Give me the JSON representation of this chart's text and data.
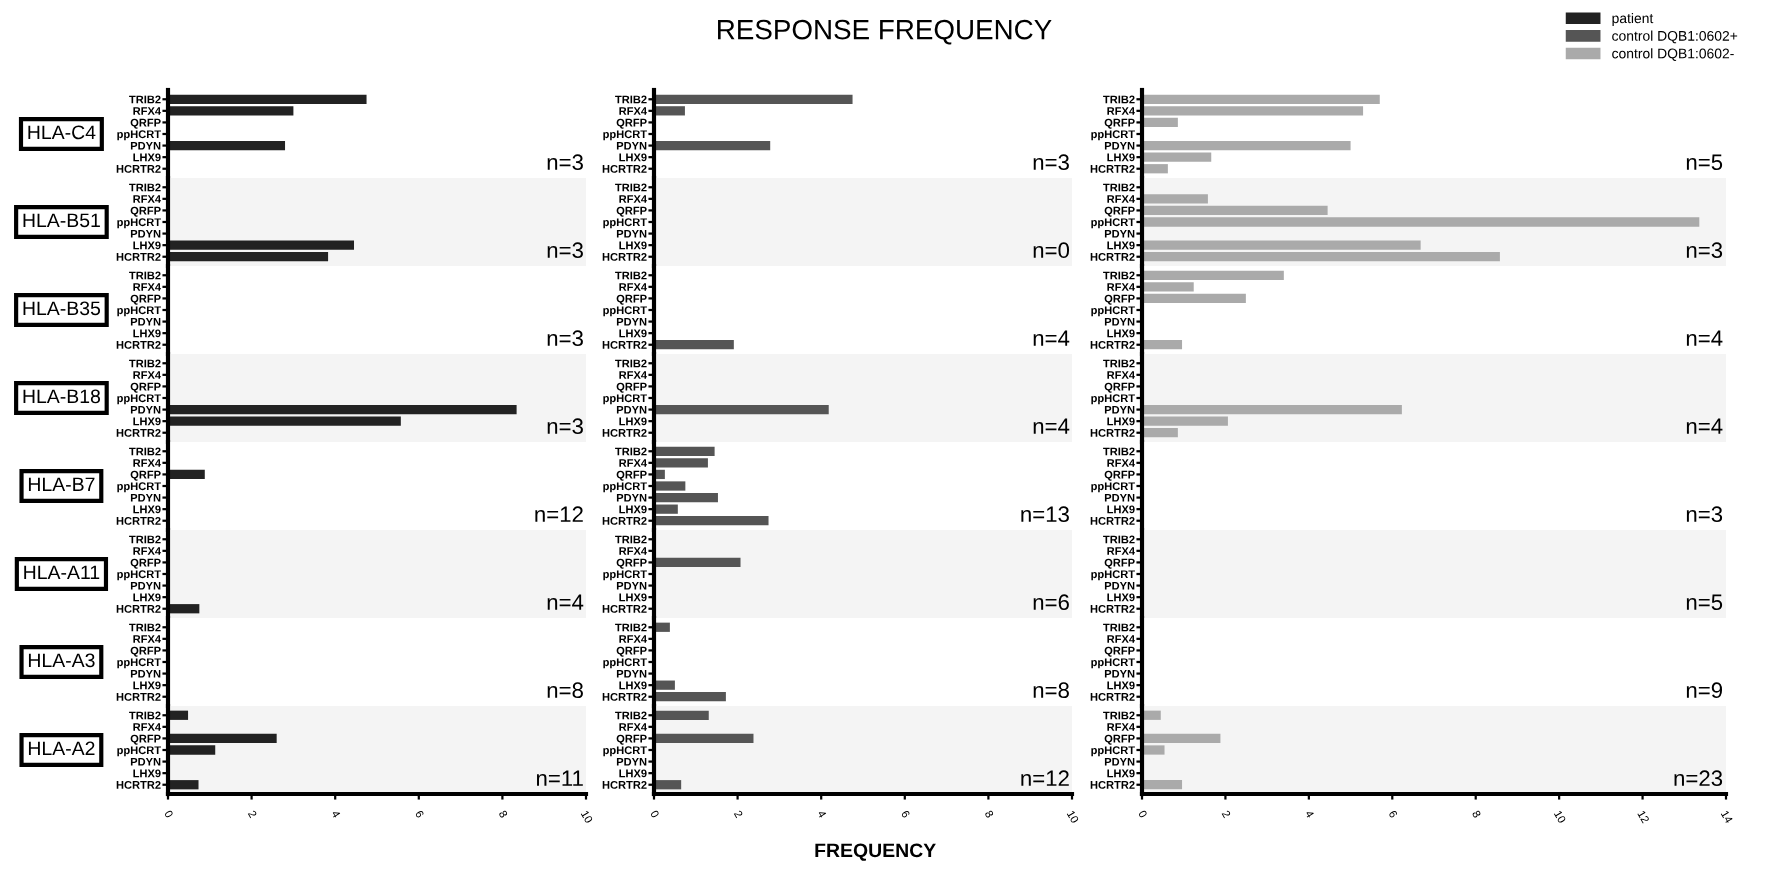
{
  "chart_data": [
    {
      "type": "bar",
      "orientation": "horizontal",
      "ylabel": "HLA-C4",
      "legend": "top right",
      "categories": [
        "TRIB2",
        "RFX4",
        "QRFP",
        "ppHCRT",
        "PDYN",
        "LHX9",
        "HCRTR2"
      ],
      "series": [
        {
          "name": "patient",
          "color": "#222222",
          "values": [
            4.75,
            3,
            0,
            0,
            2.8,
            0,
            0
          ]
        }
      ],
      "xlim": [
        0,
        10
      ],
      "xticks": [
        0,
        2,
        4,
        6,
        8,
        10
      ],
      "tick_labels": "y",
      "annotations": [
        "n=3"
      ]
    },
    {
      "type": "bar",
      "orientation": "horizontal",
      "title": "RESPONSE FREQUENCY",
      "categories": [
        "TRIB2",
        "RFX4",
        "QRFP",
        "ppHCRT",
        "PDYN",
        "LHX9",
        "HCRTR2"
      ],
      "series": [
        {
          "name": "control DQB1:0602+",
          "color": "#555555",
          "values": [
            4.75,
            0.74,
            0,
            0,
            2.78,
            0,
            0
          ]
        }
      ],
      "xlim": [
        0,
        10
      ],
      "xticks": [
        0,
        2,
        4,
        6,
        8,
        10
      ],
      "tick_labels": "y",
      "annotations": [
        "n=3"
      ]
    },
    {
      "type": "bar",
      "orientation": "horizontal",
      "categories": [
        "TRIB2",
        "RFX4",
        "QRFP",
        "ppHCRT",
        "PDYN",
        "LHX9",
        "HCRTR2"
      ],
      "series": [
        {
          "name": "control DQB1:0602-",
          "color": "#aaaaaa",
          "values": [
            5.7,
            5.3,
            0.86,
            0,
            5.0,
            1.66,
            0.62
          ]
        }
      ],
      "xlim": [
        0,
        14
      ],
      "xticks": [
        0,
        2,
        4,
        6,
        8,
        10,
        12,
        14
      ],
      "tick_labels": "y",
      "annotations": [
        "n=5"
      ]
    },
    {
      "type": "bar",
      "orientation": "horizontal",
      "ylabel": "HLA-B51",
      "categories": [
        "TRIB2",
        "RFX4",
        "QRFP",
        "ppHCRT",
        "PDYN",
        "LHX9",
        "HCRTR2"
      ],
      "series": [
        {
          "color": "#222222",
          "values": [
            0,
            0,
            0,
            0,
            0,
            4.45,
            3.83
          ]
        }
      ],
      "xlim": [
        0,
        10
      ],
      "xticks": [
        0,
        2,
        4,
        6,
        8,
        10
      ],
      "tick_labels": "y",
      "annotations": [
        "n=3"
      ]
    },
    {
      "type": "bar",
      "orientation": "horizontal",
      "categories": [
        "TRIB2",
        "RFX4",
        "QRFP",
        "ppHCRT",
        "PDYN",
        "LHX9",
        "HCRTR2"
      ],
      "series": [
        {
          "color": "#555555",
          "values": [
            0,
            0,
            0,
            0,
            0,
            0,
            0
          ]
        }
      ],
      "xlim": [
        0,
        10
      ],
      "xticks": [
        0,
        2,
        4,
        6,
        8,
        10
      ],
      "tick_labels": "y",
      "annotations": [
        "n=0"
      ]
    },
    {
      "type": "bar",
      "orientation": "horizontal",
      "categories": [
        "TRIB2",
        "RFX4",
        "QRFP",
        "ppHCRT",
        "PDYN",
        "LHX9",
        "HCRTR2"
      ],
      "series": [
        {
          "color": "#aaaaaa",
          "values": [
            0,
            1.58,
            4.45,
            13.36,
            0,
            6.68,
            8.58
          ]
        }
      ],
      "xlim": [
        0,
        14
      ],
      "xticks": [
        0,
        2,
        4,
        6,
        8,
        10,
        12,
        14
      ],
      "tick_labels": "y",
      "annotations": [
        "n=3"
      ]
    },
    {
      "type": "bar",
      "orientation": "horizontal",
      "ylabel": "HLA-B35",
      "categories": [
        "TRIB2",
        "RFX4",
        "QRFP",
        "ppHCRT",
        "PDYN",
        "LHX9",
        "HCRTR2"
      ],
      "series": [
        {
          "color": "#222222",
          "values": [
            0,
            0,
            0,
            0,
            0,
            0,
            0
          ]
        }
      ],
      "xlim": [
        0,
        10
      ],
      "xticks": [
        0,
        2,
        4,
        6,
        8,
        10
      ],
      "tick_labels": "y",
      "annotations": [
        "n=3"
      ]
    },
    {
      "type": "bar",
      "orientation": "horizontal",
      "categories": [
        "TRIB2",
        "RFX4",
        "QRFP",
        "ppHCRT",
        "PDYN",
        "LHX9",
        "HCRTR2"
      ],
      "series": [
        {
          "color": "#555555",
          "values": [
            0,
            0,
            0,
            0,
            0,
            0,
            1.91
          ]
        }
      ],
      "xlim": [
        0,
        10
      ],
      "xticks": [
        0,
        2,
        4,
        6,
        8,
        10
      ],
      "tick_labels": "y",
      "annotations": [
        "n=4"
      ]
    },
    {
      "type": "bar",
      "orientation": "horizontal",
      "categories": [
        "TRIB2",
        "RFX4",
        "QRFP",
        "ppHCRT",
        "PDYN",
        "LHX9",
        "HCRTR2"
      ],
      "series": [
        {
          "color": "#aaaaaa",
          "values": [
            3.4,
            1.24,
            2.49,
            0,
            0,
            0,
            0.96
          ]
        }
      ],
      "xlim": [
        0,
        14
      ],
      "xticks": [
        0,
        2,
        4,
        6,
        8,
        10,
        12,
        14
      ],
      "tick_labels": "y",
      "annotations": [
        "n=4"
      ]
    },
    {
      "type": "bar",
      "orientation": "horizontal",
      "ylabel": "HLA-B18",
      "categories": [
        "TRIB2",
        "RFX4",
        "QRFP",
        "ppHCRT",
        "PDYN",
        "LHX9",
        "HCRTR2"
      ],
      "series": [
        {
          "color": "#222222",
          "values": [
            0,
            0,
            0,
            0,
            8.34,
            5.57,
            0
          ]
        }
      ],
      "xlim": [
        0,
        10
      ],
      "xticks": [
        0,
        2,
        4,
        6,
        8,
        10
      ],
      "tick_labels": "y",
      "annotations": [
        "n=3"
      ]
    },
    {
      "type": "bar",
      "orientation": "horizontal",
      "categories": [
        "TRIB2",
        "RFX4",
        "QRFP",
        "ppHCRT",
        "PDYN",
        "LHX9",
        "HCRTR2"
      ],
      "series": [
        {
          "color": "#555555",
          "values": [
            0,
            0,
            0,
            0,
            4.18,
            0,
            0
          ]
        }
      ],
      "xlim": [
        0,
        10
      ],
      "xticks": [
        0,
        2,
        4,
        6,
        8,
        10
      ],
      "tick_labels": "y",
      "annotations": [
        "n=4"
      ]
    },
    {
      "type": "bar",
      "orientation": "horizontal",
      "categories": [
        "TRIB2",
        "RFX4",
        "QRFP",
        "ppHCRT",
        "PDYN",
        "LHX9",
        "HCRTR2"
      ],
      "series": [
        {
          "color": "#aaaaaa",
          "values": [
            0,
            0,
            0,
            0,
            6.23,
            2.06,
            0.86
          ]
        }
      ],
      "xlim": [
        0,
        14
      ],
      "xticks": [
        0,
        2,
        4,
        6,
        8,
        10,
        12,
        14
      ],
      "tick_labels": "y",
      "annotations": [
        "n=4"
      ]
    },
    {
      "type": "bar",
      "orientation": "horizontal",
      "ylabel": "HLA-B7",
      "categories": [
        "TRIB2",
        "RFX4",
        "QRFP",
        "ppHCRT",
        "PDYN",
        "LHX9",
        "HCRTR2"
      ],
      "series": [
        {
          "color": "#222222",
          "values": [
            0,
            0,
            0.88,
            0,
            0,
            0,
            0
          ]
        }
      ],
      "xlim": [
        0,
        10
      ],
      "xticks": [
        0,
        2,
        4,
        6,
        8,
        10
      ],
      "tick_labels": "y",
      "annotations": [
        "n=12"
      ]
    },
    {
      "type": "bar",
      "orientation": "horizontal",
      "categories": [
        "TRIB2",
        "RFX4",
        "QRFP",
        "ppHCRT",
        "PDYN",
        "LHX9",
        "HCRTR2"
      ],
      "series": [
        {
          "color": "#555555",
          "values": [
            1.45,
            1.29,
            0.26,
            0.75,
            1.53,
            0.57,
            2.74
          ]
        }
      ],
      "xlim": [
        0,
        10
      ],
      "xticks": [
        0,
        2,
        4,
        6,
        8,
        10
      ],
      "tick_labels": "y",
      "annotations": [
        "n=13"
      ]
    },
    {
      "type": "bar",
      "orientation": "horizontal",
      "categories": [
        "TRIB2",
        "RFX4",
        "QRFP",
        "ppHCRT",
        "PDYN",
        "LHX9",
        "HCRTR2"
      ],
      "series": [
        {
          "color": "#aaaaaa",
          "values": [
            0,
            0,
            0,
            0,
            0,
            0,
            0
          ]
        }
      ],
      "xlim": [
        0,
        14
      ],
      "xticks": [
        0,
        2,
        4,
        6,
        8,
        10,
        12,
        14
      ],
      "tick_labels": "y",
      "annotations": [
        "n=3"
      ]
    },
    {
      "type": "bar",
      "orientation": "horizontal",
      "ylabel": "HLA-A11",
      "categories": [
        "TRIB2",
        "RFX4",
        "QRFP",
        "ppHCRT",
        "PDYN",
        "LHX9",
        "HCRTR2"
      ],
      "series": [
        {
          "color": "#222222",
          "values": [
            0,
            0,
            0,
            0,
            0,
            0,
            0.75
          ]
        }
      ],
      "xlim": [
        0,
        10
      ],
      "xticks": [
        0,
        2,
        4,
        6,
        8,
        10
      ],
      "tick_labels": "y",
      "annotations": [
        "n=4"
      ]
    },
    {
      "type": "bar",
      "orientation": "horizontal",
      "categories": [
        "TRIB2",
        "RFX4",
        "QRFP",
        "ppHCRT",
        "PDYN",
        "LHX9",
        "HCRTR2"
      ],
      "series": [
        {
          "color": "#555555",
          "values": [
            0,
            0,
            2.07,
            0,
            0,
            0,
            0
          ]
        }
      ],
      "xlim": [
        0,
        10
      ],
      "xticks": [
        0,
        2,
        4,
        6,
        8,
        10
      ],
      "tick_labels": "y",
      "annotations": [
        "n=6"
      ]
    },
    {
      "type": "bar",
      "orientation": "horizontal",
      "categories": [
        "TRIB2",
        "RFX4",
        "QRFP",
        "ppHCRT",
        "PDYN",
        "LHX9",
        "HCRTR2"
      ],
      "series": [
        {
          "color": "#aaaaaa",
          "values": [
            0,
            0,
            0,
            0,
            0,
            0,
            0
          ]
        }
      ],
      "xlim": [
        0,
        14
      ],
      "xticks": [
        0,
        2,
        4,
        6,
        8,
        10,
        12,
        14
      ],
      "tick_labels": "y",
      "annotations": [
        "n=5"
      ]
    },
    {
      "type": "bar",
      "orientation": "horizontal",
      "ylabel": "HLA-A3",
      "categories": [
        "TRIB2",
        "RFX4",
        "QRFP",
        "ppHCRT",
        "PDYN",
        "LHX9",
        "HCRTR2"
      ],
      "series": [
        {
          "color": "#222222",
          "values": [
            0,
            0,
            0,
            0,
            0,
            0,
            0
          ]
        }
      ],
      "xlim": [
        0,
        10
      ],
      "xticks": [
        0,
        2,
        4,
        6,
        8,
        10
      ],
      "tick_labels": "y",
      "annotations": [
        "n=8"
      ]
    },
    {
      "type": "bar",
      "orientation": "horizontal",
      "categories": [
        "TRIB2",
        "RFX4",
        "QRFP",
        "ppHCRT",
        "PDYN",
        "LHX9",
        "HCRTR2"
      ],
      "series": [
        {
          "color": "#555555",
          "values": [
            0.38,
            0,
            0,
            0,
            0,
            0.5,
            1.72
          ]
        }
      ],
      "xlim": [
        0,
        10
      ],
      "xticks": [
        0,
        2,
        4,
        6,
        8,
        10
      ],
      "tick_labels": "y",
      "annotations": [
        "n=8"
      ]
    },
    {
      "type": "bar",
      "orientation": "horizontal",
      "categories": [
        "TRIB2",
        "RFX4",
        "QRFP",
        "ppHCRT",
        "PDYN",
        "LHX9",
        "HCRTR2"
      ],
      "series": [
        {
          "color": "#aaaaaa",
          "values": [
            0,
            0,
            0,
            0,
            0,
            0,
            0
          ]
        }
      ],
      "xlim": [
        0,
        14
      ],
      "xticks": [
        0,
        2,
        4,
        6,
        8,
        10,
        12,
        14
      ],
      "tick_labels": "y",
      "annotations": [
        "n=9"
      ]
    },
    {
      "type": "bar",
      "orientation": "horizontal",
      "ylabel": "HLA-A2",
      "categories": [
        "TRIB2",
        "RFX4",
        "QRFP",
        "ppHCRT",
        "PDYN",
        "LHX9",
        "HCRTR2"
      ],
      "series": [
        {
          "color": "#222222",
          "values": [
            0.48,
            0,
            2.6,
            1.13,
            0,
            0,
            0.73
          ]
        }
      ],
      "xlim": [
        0,
        10
      ],
      "xticks": [
        0,
        2,
        4,
        6,
        8,
        10
      ],
      "annotations": [
        "n=11"
      ]
    },
    {
      "type": "bar",
      "orientation": "horizontal",
      "xlabel": "FREQUENCY",
      "categories": [
        "TRIB2",
        "RFX4",
        "QRFP",
        "ppHCRT",
        "PDYN",
        "LHX9",
        "HCRTR2"
      ],
      "series": [
        {
          "color": "#555555",
          "values": [
            1.31,
            0,
            2.38,
            0,
            0,
            0,
            0.65
          ]
        }
      ],
      "xlim": [
        0,
        10
      ],
      "xticks": [
        0,
        2,
        4,
        6,
        8,
        10
      ],
      "annotations": [
        "n=12"
      ]
    },
    {
      "type": "bar",
      "orientation": "horizontal",
      "categories": [
        "TRIB2",
        "RFX4",
        "QRFP",
        "ppHCRT",
        "PDYN",
        "LHX9",
        "HCRTR2"
      ],
      "series": [
        {
          "color": "#aaaaaa",
          "values": [
            0.45,
            null,
            1.88,
            0.54,
            0,
            0,
            0.96
          ]
        }
      ],
      "xlim": [
        0,
        14
      ],
      "xticks": [
        0,
        2,
        4,
        6,
        8,
        10,
        12,
        14
      ],
      "annotations": [
        "n=23"
      ]
    }
  ]
}
